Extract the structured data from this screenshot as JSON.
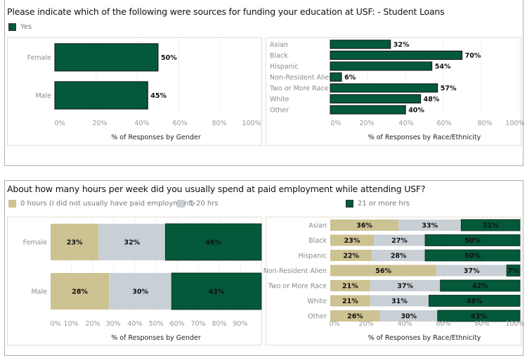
{
  "colors": {
    "green": "#03593a",
    "tan": "#cdc291",
    "gray": "#c8d0d6",
    "grid": "#efefef"
  },
  "chart_data": [
    {
      "id": "loans-gender",
      "type": "bar",
      "orientation": "horizontal",
      "categories": [
        "Female",
        "Male"
      ],
      "series": [
        {
          "name": "Yes",
          "values": [
            50,
            45
          ]
        }
      ],
      "labels": [
        "50%",
        "45%"
      ],
      "xlabel": "% of Responses by Gender",
      "xlim": [
        0,
        100
      ],
      "ticks": [
        "0%",
        "20%",
        "40%",
        "60%",
        "80%",
        "100%"
      ],
      "grid": true
    },
    {
      "id": "loans-race",
      "type": "bar",
      "orientation": "horizontal",
      "categories": [
        "Asian",
        "Black",
        "Hispanic",
        "Non-Resident Alien",
        "Two or More Race",
        "White",
        "Other"
      ],
      "series": [
        {
          "name": "Yes",
          "values": [
            32,
            70,
            54,
            6,
            57,
            48,
            40
          ]
        }
      ],
      "labels": [
        "32%",
        "70%",
        "54%",
        "6%",
        "57%",
        "48%",
        "40%"
      ],
      "xlabel": "% of Responses by Race/Ethnicity",
      "xlim": [
        0,
        100
      ],
      "ticks": [
        "0%",
        "20%",
        "40%",
        "60%",
        "80%",
        "100%"
      ],
      "grid": true
    },
    {
      "id": "hours-gender",
      "type": "bar",
      "orientation": "horizontal",
      "stacked": true,
      "categories": [
        "Female",
        "Male"
      ],
      "series": [
        {
          "name": "0 hours (I did not usually have paid employment)",
          "values": [
            23,
            28
          ],
          "labels": [
            "23%",
            "28%"
          ]
        },
        {
          "name": "1-20 hrs",
          "values": [
            32,
            30
          ],
          "labels": [
            "32%",
            "30%"
          ]
        },
        {
          "name": "21 or more hrs",
          "values": [
            46,
            43
          ],
          "labels": [
            "46%",
            "43%"
          ]
        }
      ],
      "xlabel": "% of Responses by Gender",
      "xlim": [
        0,
        100
      ],
      "ticks": [
        "0%",
        "10%",
        "20%",
        "30%",
        "40%",
        "50%",
        "60%",
        "70%",
        "80%",
        "90%"
      ],
      "grid": true
    },
    {
      "id": "hours-race",
      "type": "bar",
      "orientation": "horizontal",
      "stacked": true,
      "categories": [
        "Asian",
        "Black",
        "Hispanic",
        "Non-Resident Alien",
        "Two or More Race",
        "White",
        "Other"
      ],
      "series": [
        {
          "name": "0 hours (I did not usually have paid employment)",
          "values": [
            36,
            23,
            22,
            56,
            21,
            21,
            26
          ],
          "labels": [
            "36%",
            "23%",
            "22%",
            "56%",
            "21%",
            "21%",
            "26%"
          ]
        },
        {
          "name": "1-20 hrs",
          "values": [
            33,
            27,
            28,
            37,
            37,
            31,
            30
          ],
          "labels": [
            "33%",
            "27%",
            "28%",
            "37%",
            "37%",
            "31%",
            "30%"
          ]
        },
        {
          "name": "21 or more hrs",
          "values": [
            31,
            50,
            50,
            7,
            42,
            48,
            43
          ],
          "labels": [
            "31%",
            "50%",
            "50%",
            "7%",
            "42%",
            "48%",
            "43%"
          ]
        }
      ],
      "xlabel": "% of Responses by Race/Ethnicity",
      "xlim": [
        0,
        100
      ],
      "ticks": [
        "0%",
        "20%",
        "40%",
        "60%",
        "80%",
        "100%"
      ],
      "grid": true
    }
  ],
  "top": {
    "title": "Please indicate which of the following were sources for funding your education at USF: - Student Loans",
    "legend": [
      {
        "label": "Yes",
        "color": "#03593a"
      }
    ]
  },
  "bottom": {
    "title": "About how many hours per week did you usually spend at paid employment while attending USF?",
    "legend": [
      {
        "label": "0 hours (I did not usually have paid employment)",
        "color": "#cdc291"
      },
      {
        "label": "1-20 hrs",
        "color": "#c8d0d6"
      },
      {
        "label": "21 or more hrs",
        "color": "#03593a"
      }
    ]
  }
}
